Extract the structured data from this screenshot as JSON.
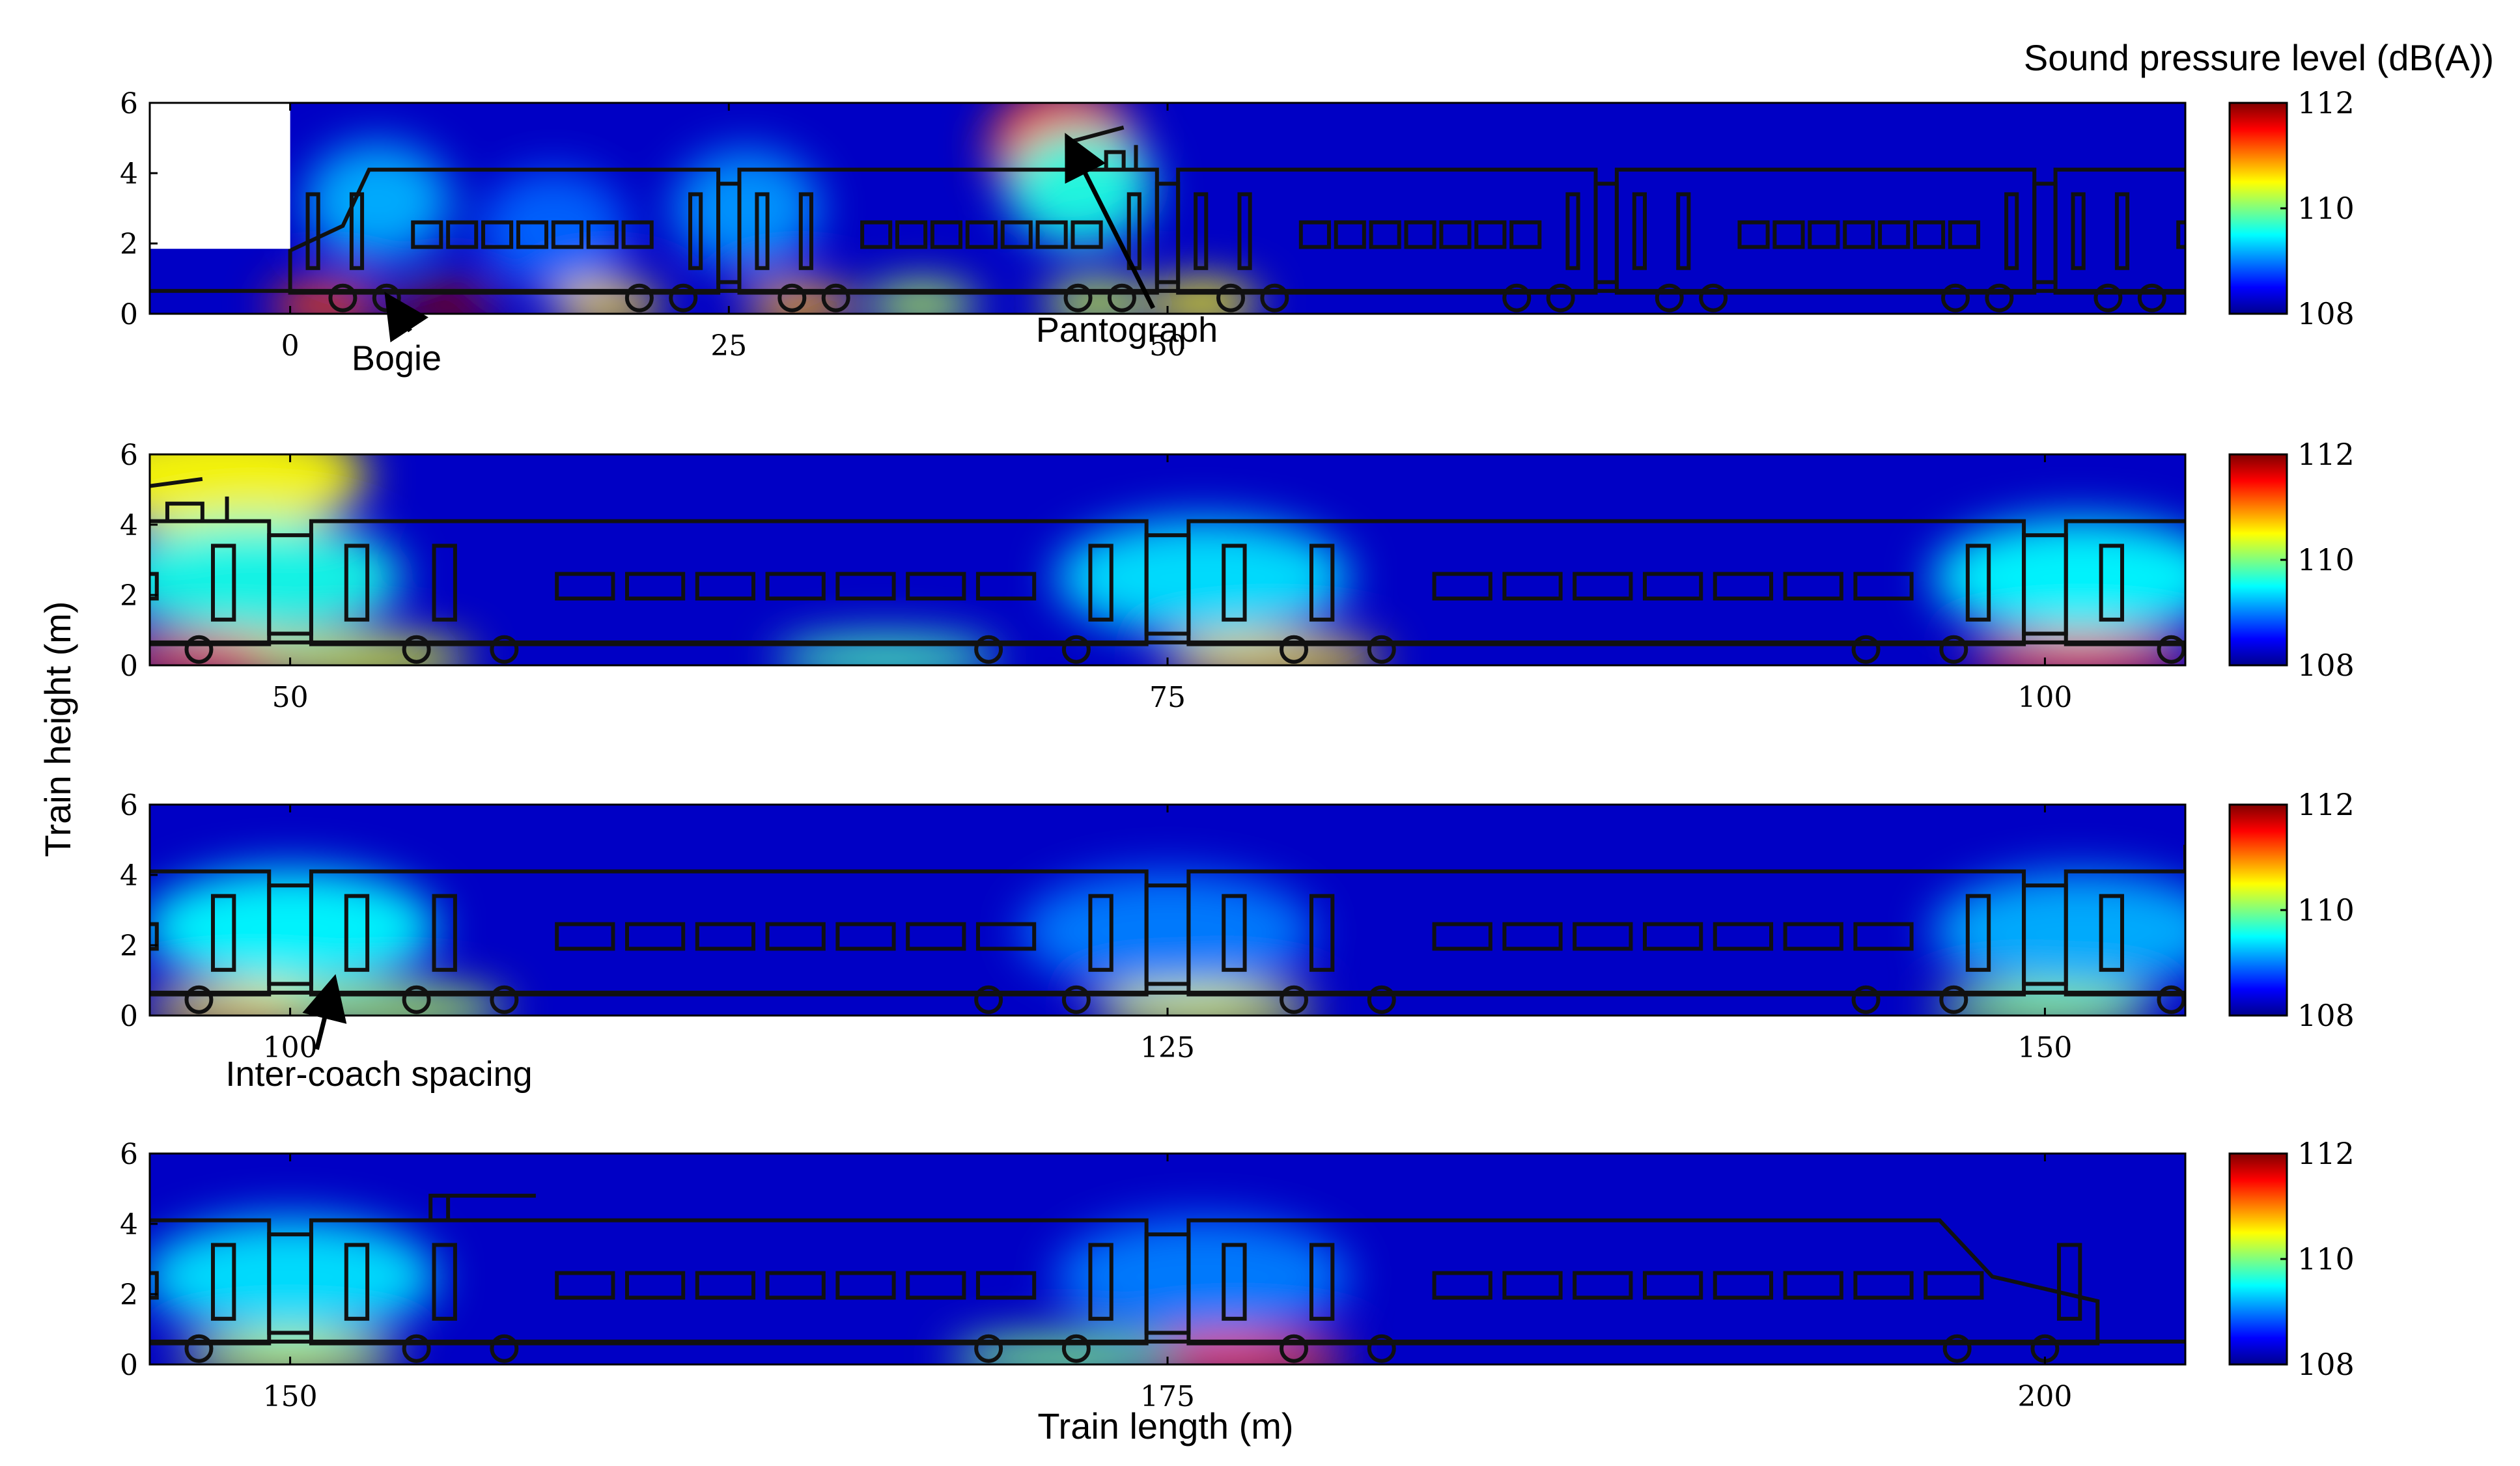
{
  "chart_data": {
    "type": "heatmap",
    "title": "",
    "xlabel": "Train length (m)",
    "ylabel": "Train height (m)",
    "colorbar": {
      "title": "Sound pressure level (dB(A))",
      "range": [
        108,
        112
      ],
      "ticks": [
        "108",
        "110",
        "112"
      ],
      "colormap": "jet"
    },
    "panels": [
      {
        "id": 1,
        "xlim": [
          -8,
          108
        ],
        "ylim": [
          0,
          6
        ],
        "xticks": [
          0,
          25,
          50
        ],
        "xtick_labels": [
          "0",
          "25",
          "50"
        ],
        "yticks": [
          0,
          2,
          4,
          6
        ],
        "ytick_labels": [
          "0",
          "2",
          "4",
          "6"
        ],
        "hotspots": [
          {
            "x": 9,
            "y": 0.25,
            "level": 112
          },
          {
            "x": 2,
            "y": 0.25,
            "level": 111.2
          },
          {
            "x": 18,
            "y": 0.25,
            "level": 110.6
          },
          {
            "x": 29,
            "y": 0.25,
            "level": 110.8
          },
          {
            "x": 36,
            "y": 0.25,
            "level": 110.2
          },
          {
            "x": 46,
            "y": 0.3,
            "level": 110.3
          },
          {
            "x": 52,
            "y": 0.3,
            "level": 110.5
          },
          {
            "x": 44,
            "y": 4.8,
            "level": 111.2
          },
          {
            "x": 45,
            "y": 3.6,
            "level": 109.6
          },
          {
            "x": 5,
            "y": 3.2,
            "level": 109.2
          },
          {
            "x": 26,
            "y": 3.0,
            "level": 109.1
          },
          {
            "x": 15,
            "y": 2.4,
            "level": 108.9
          }
        ]
      },
      {
        "id": 2,
        "xlim": [
          46,
          104
        ],
        "ylim": [
          0,
          6
        ],
        "xticks": [
          50,
          75,
          100
        ],
        "xtick_labels": [
          "50",
          "75",
          "100"
        ],
        "yticks": [
          0,
          2,
          4,
          6
        ],
        "ytick_labels": [
          "0",
          "2",
          "4",
          "6"
        ],
        "hotspots": [
          {
            "x": 48,
            "y": 5.4,
            "level": 110.5
          },
          {
            "x": 48,
            "y": 0.2,
            "level": 111.2
          },
          {
            "x": 52,
            "y": 0.2,
            "level": 110.4
          },
          {
            "x": 78,
            "y": 0.2,
            "level": 110.6
          },
          {
            "x": 101,
            "y": 0.2,
            "level": 111.3
          },
          {
            "x": 67,
            "y": 0.2,
            "level": 109.8
          },
          {
            "x": 49,
            "y": 2.5,
            "level": 109.6
          },
          {
            "x": 76,
            "y": 2.5,
            "level": 109.4
          },
          {
            "x": 101,
            "y": 2.5,
            "level": 109.5
          }
        ]
      },
      {
        "id": 3,
        "xlim": [
          96,
          154
        ],
        "ylim": [
          0,
          6
        ],
        "xticks": [
          100,
          125,
          150
        ],
        "xtick_labels": [
          "100",
          "125",
          "150"
        ],
        "yticks": [
          0,
          2,
          4,
          6
        ],
        "ytick_labels": [
          "0",
          "2",
          "4",
          "6"
        ],
        "hotspots": [
          {
            "x": 99,
            "y": 0.2,
            "level": 110.6
          },
          {
            "x": 103,
            "y": 0.2,
            "level": 110.2
          },
          {
            "x": 126,
            "y": 0.2,
            "level": 110.4
          },
          {
            "x": 150,
            "y": 0.2,
            "level": 110.1
          },
          {
            "x": 100,
            "y": 2.5,
            "level": 109.5
          },
          {
            "x": 125,
            "y": 2.4,
            "level": 109.0
          },
          {
            "x": 151,
            "y": 2.4,
            "level": 109.2
          }
        ]
      },
      {
        "id": 4,
        "xlim": [
          146,
          204
        ],
        "ylim": [
          0,
          6
        ],
        "xticks": [
          150,
          175,
          200
        ],
        "xtick_labels": [
          "150",
          "175",
          "200"
        ],
        "yticks": [
          0,
          2,
          4,
          6
        ],
        "ytick_labels": [
          "0",
          "2",
          "4",
          "6"
        ],
        "hotspots": [
          {
            "x": 150,
            "y": 0.2,
            "level": 110.3
          },
          {
            "x": 177,
            "y": 0.2,
            "level": 111.2
          },
          {
            "x": 172,
            "y": 0.2,
            "level": 110.0
          },
          {
            "x": 150,
            "y": 2.5,
            "level": 109.4
          },
          {
            "x": 176,
            "y": 2.5,
            "level": 109.0
          }
        ]
      }
    ],
    "annotations": [
      {
        "panel": 1,
        "text": "Bogie",
        "x": 3.5,
        "y": -1.6,
        "arrow_to": [
          5.8,
          0.3
        ]
      },
      {
        "panel": 1,
        "text": "Pantograph",
        "x": 42.5,
        "y": -0.8,
        "arrow_to": [
          44.5,
          4.8
        ]
      },
      {
        "panel": 3,
        "text": "Inter-coach spacing",
        "x": 101.5,
        "y": -2.0,
        "arrow_to": [
          101.2,
          0.8
        ]
      }
    ]
  }
}
